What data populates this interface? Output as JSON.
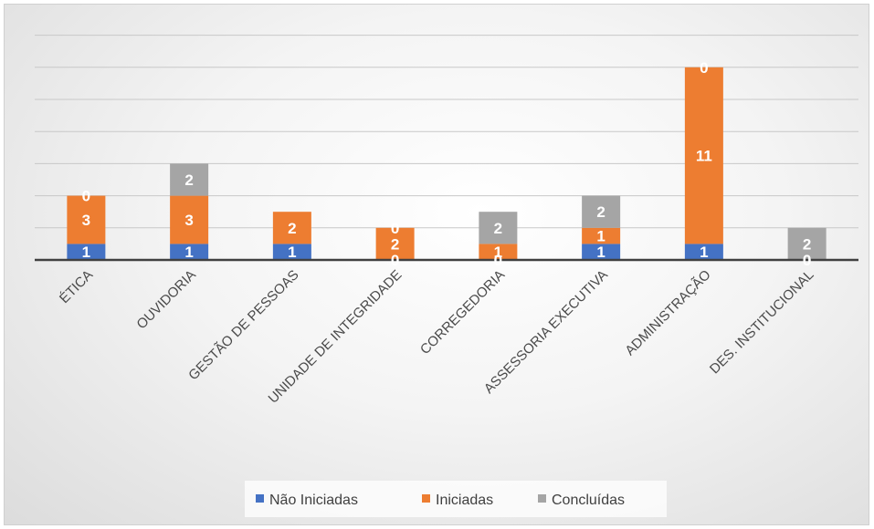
{
  "chart_data": {
    "type": "bar",
    "stacked": true,
    "title": "",
    "xlabel": "",
    "ylabel": "",
    "ylim": [
      0,
      14
    ],
    "grid": true,
    "legend_position": "bottom",
    "categories": [
      "ÉTICA",
      "OUVIDORIA",
      "GESTÃO DE PESSOAS",
      "UNIDADE DE INTEGRIDADE",
      "CORREGEDORIA",
      "ASSESSORIA EXECUTIVA",
      "ADMINISTRAÇÃO",
      "DES. INSTITUCIONAL"
    ],
    "series": [
      {
        "name": "Não Iniciadas",
        "color": "#4472c4",
        "values": [
          1,
          1,
          1,
          0,
          0,
          1,
          1,
          0
        ]
      },
      {
        "name": "Iniciadas",
        "color": "#ed7d31",
        "values": [
          3,
          3,
          2,
          2,
          1,
          1,
          11,
          0
        ]
      },
      {
        "name": "Concluídas",
        "color": "#a5a5a5",
        "values": [
          0,
          2,
          null,
          0,
          2,
          2,
          0,
          2
        ]
      }
    ]
  }
}
